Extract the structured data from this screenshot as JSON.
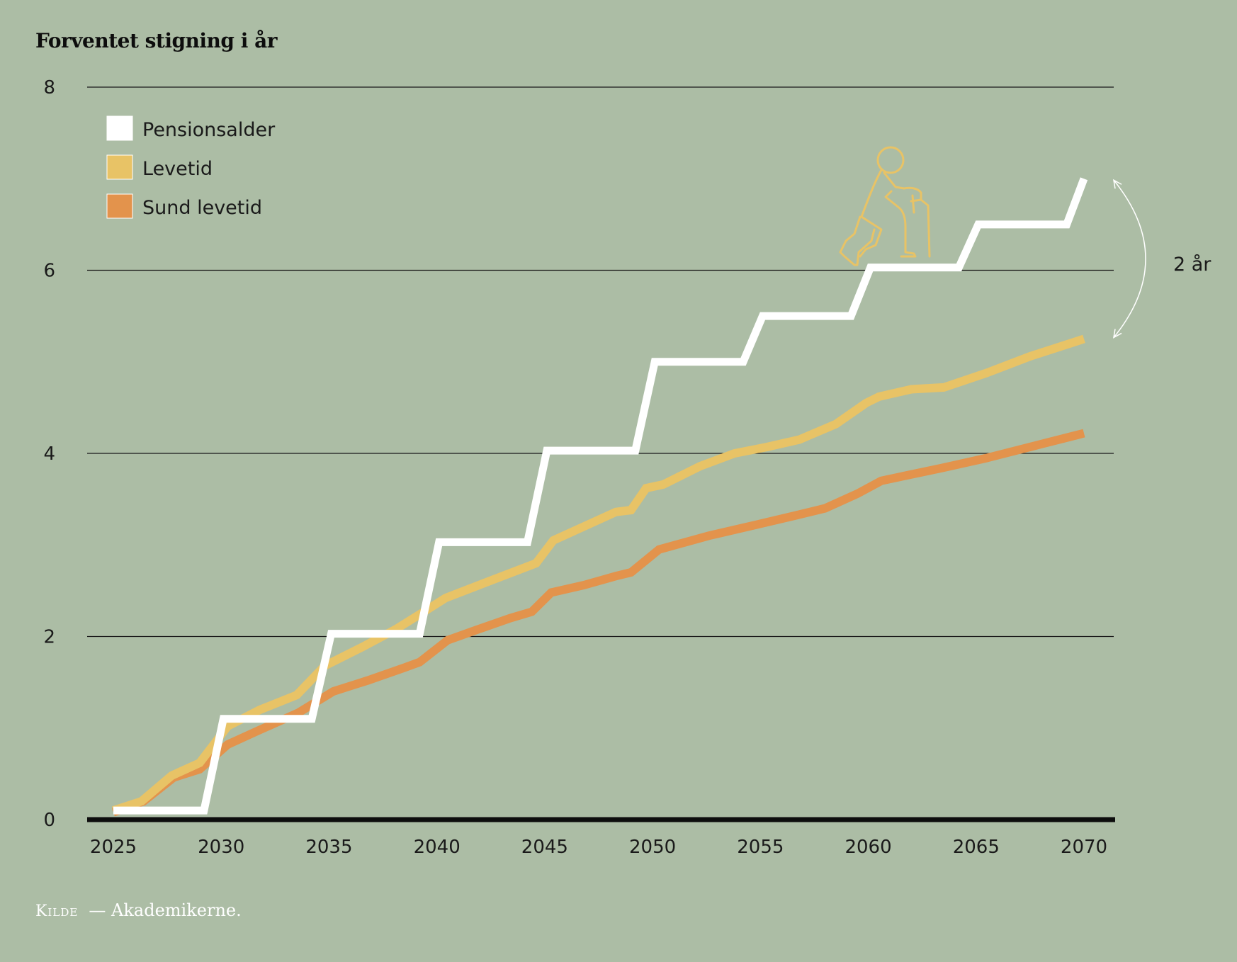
{
  "chart_data": {
    "type": "line",
    "title": "Forventet stigning i år",
    "xlabel": "",
    "ylabel": "",
    "xlim": [
      2025,
      2070
    ],
    "ylim": [
      0,
      8
    ],
    "x_ticks": [
      2025,
      2030,
      2035,
      2040,
      2045,
      2050,
      2055,
      2060,
      2065,
      2070
    ],
    "y_ticks": [
      0,
      2,
      4,
      6,
      8
    ],
    "grid": true,
    "legend_position": "top-left",
    "series": [
      {
        "name": "Pensionsalder",
        "color": "#ffffff",
        "x": [
          2025,
          2029.2,
          2030.1,
          2034.2,
          2035.1,
          2039.2,
          2040.1,
          2044.2,
          2045.1,
          2049.2,
          2050.1,
          2054.2,
          2055.1,
          2059.2,
          2060.1,
          2064.2,
          2065.1,
          2069.2,
          2070
        ],
        "values": [
          0.1,
          0.1,
          1.1,
          1.1,
          2.03,
          2.03,
          3.03,
          3.03,
          4.03,
          4.03,
          5.0,
          5.0,
          5.5,
          5.5,
          6.03,
          6.03,
          6.5,
          6.5,
          7.0
        ]
      },
      {
        "name": "Levetid",
        "color": "#e8c366",
        "x": [
          2025,
          2026.3,
          2027.7,
          2029,
          2030.3,
          2031.8,
          2033.5,
          2034.8,
          2036.5,
          2038.1,
          2039.6,
          2040.4,
          2042.6,
          2044.6,
          2045.4,
          2046.8,
          2048.3,
          2049,
          2049.7,
          2050.5,
          2052.2,
          2053.8,
          2055.3,
          2056.8,
          2058.5,
          2059.9,
          2060.5,
          2062,
          2063.5,
          2065.5,
          2067.5,
          2070
        ],
        "values": [
          0.1,
          0.2,
          0.48,
          0.62,
          1.02,
          1.2,
          1.36,
          1.68,
          1.88,
          2.08,
          2.3,
          2.42,
          2.62,
          2.8,
          3.05,
          3.2,
          3.36,
          3.38,
          3.62,
          3.66,
          3.86,
          4.0,
          4.07,
          4.15,
          4.32,
          4.55,
          4.62,
          4.7,
          4.72,
          4.88,
          5.06,
          5.25
        ]
      },
      {
        "name": "Sund levetid",
        "color": "#e3934c",
        "x": [
          2025,
          2026.4,
          2027.8,
          2029,
          2030.3,
          2031.7,
          2033.6,
          2035.2,
          2036.8,
          2038.5,
          2039.2,
          2040.5,
          2041.7,
          2043.4,
          2044.4,
          2045.3,
          2046.8,
          2048.3,
          2049,
          2050.3,
          2052.6,
          2054.8,
          2056.6,
          2058,
          2059.5,
          2060.6,
          2061.6,
          2063.4,
          2065.5,
          2068,
          2070
        ],
        "values": [
          0.08,
          0.2,
          0.46,
          0.55,
          0.82,
          0.97,
          1.17,
          1.4,
          1.52,
          1.66,
          1.72,
          1.96,
          2.06,
          2.2,
          2.27,
          2.48,
          2.56,
          2.66,
          2.7,
          2.95,
          3.1,
          3.22,
          3.32,
          3.4,
          3.56,
          3.7,
          3.75,
          3.84,
          3.95,
          4.1,
          4.22
        ]
      }
    ],
    "annotations": [
      {
        "text": "2 år",
        "from_value": 7.0,
        "to_value": 5.25,
        "at_x": 2070
      }
    ]
  },
  "icons": {
    "figure": "elderly-person-with-cane-icon"
  },
  "source": {
    "label": "Kilde",
    "text": "— Akademikerne."
  },
  "colors": {
    "background": "#acbda5",
    "axis": "#0d0d0d",
    "grid": "#1a1a1a",
    "icon": "#e8c366"
  }
}
